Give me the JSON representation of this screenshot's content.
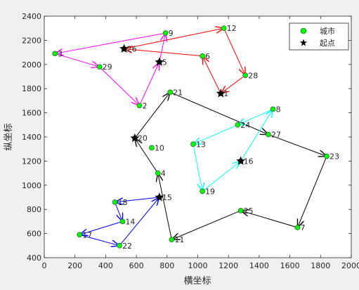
{
  "chart_data": {
    "type": "scatter",
    "xlabel": "横坐标",
    "ylabel": "纵坐标",
    "xlim": [
      0,
      2000
    ],
    "ylim": [
      400,
      2400
    ],
    "xticks": [
      0,
      200,
      400,
      600,
      800,
      1000,
      1200,
      1400,
      1600,
      1800,
      2000
    ],
    "yticks": [
      400,
      600,
      800,
      1000,
      1200,
      1400,
      1600,
      1800,
      2000,
      2200,
      2400
    ],
    "grid": false,
    "legend": {
      "position": "top-right",
      "entries": [
        {
          "label": "城市",
          "marker": "circle",
          "color": "#00ff00"
        },
        {
          "label": "起点",
          "marker": "star",
          "color": "#000000"
        }
      ]
    },
    "cities": [
      {
        "id": "1",
        "x": 1150,
        "y": 1760
      },
      {
        "id": "2",
        "x": 620,
        "y": 1660
      },
      {
        "id": "3",
        "x": 70,
        "y": 2090
      },
      {
        "id": "4",
        "x": 740,
        "y": 1100
      },
      {
        "id": "5",
        "x": 750,
        "y": 2020
      },
      {
        "id": "6",
        "x": 1030,
        "y": 2070
      },
      {
        "id": "7",
        "x": 1650,
        "y": 650
      },
      {
        "id": "8",
        "x": 1490,
        "y": 1630
      },
      {
        "id": "9",
        "x": 790,
        "y": 2260
      },
      {
        "id": "10",
        "x": 700,
        "y": 1310
      },
      {
        "id": "11",
        "x": 830,
        "y": 550
      },
      {
        "id": "12",
        "x": 1170,
        "y": 2300
      },
      {
        "id": "13",
        "x": 970,
        "y": 1340
      },
      {
        "id": "14",
        "x": 510,
        "y": 700
      },
      {
        "id": "15",
        "x": 750,
        "y": 900
      },
      {
        "id": "16",
        "x": 1280,
        "y": 1200
      },
      {
        "id": "17",
        "x": 230,
        "y": 590
      },
      {
        "id": "18",
        "x": 460,
        "y": 860
      },
      {
        "id": "19",
        "x": 1030,
        "y": 950
      },
      {
        "id": "20",
        "x": 590,
        "y": 1390
      },
      {
        "id": "21",
        "x": 820,
        "y": 1770
      },
      {
        "id": "22",
        "x": 490,
        "y": 500
      },
      {
        "id": "23",
        "x": 1840,
        "y": 1240
      },
      {
        "id": "24",
        "x": 1260,
        "y": 1500
      },
      {
        "id": "25",
        "x": 1280,
        "y": 790
      },
      {
        "id": "26",
        "x": 520,
        "y": 2130
      },
      {
        "id": "27",
        "x": 1460,
        "y": 1420
      },
      {
        "id": "28",
        "x": 1310,
        "y": 1910
      },
      {
        "id": "29",
        "x": 360,
        "y": 1980
      }
    ],
    "start_points": [
      {
        "id": "1",
        "x": 1150,
        "y": 1760
      },
      {
        "id": "5",
        "x": 750,
        "y": 2020
      },
      {
        "id": "15",
        "x": 750,
        "y": 900
      },
      {
        "id": "16",
        "x": 1280,
        "y": 1200
      },
      {
        "id": "20",
        "x": 590,
        "y": 1390
      },
      {
        "id": "26",
        "x": 520,
        "y": 2130
      }
    ],
    "routes": [
      {
        "color": "#ff0000",
        "path": [
          "26",
          "12",
          "28",
          "1",
          "6",
          "26"
        ]
      },
      {
        "color": "#ff00ff",
        "path": [
          "5",
          "9",
          "3",
          "29",
          "2",
          "5"
        ]
      },
      {
        "color": "#000000",
        "path": [
          "20",
          "21",
          "27",
          "23",
          "7",
          "25",
          "11",
          "4",
          "20"
        ]
      },
      {
        "color": "#00ffff",
        "path": [
          "16",
          "8",
          "24",
          "13",
          "19",
          "16"
        ]
      },
      {
        "color": "#0000ff",
        "path": [
          "15",
          "18",
          "14",
          "17",
          "22",
          "15"
        ]
      }
    ]
  }
}
